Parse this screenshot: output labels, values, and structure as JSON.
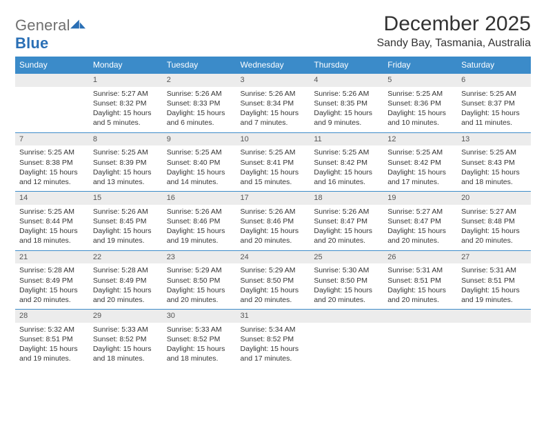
{
  "logo": {
    "word1": "General",
    "word2": "Blue"
  },
  "title": "December 2025",
  "location": "Sandy Bay, Tasmania, Australia",
  "colors": {
    "header_bg": "#3b8bc9",
    "header_text": "#ffffff",
    "daynum_bg": "#ececec",
    "row_border": "#3b8bc9",
    "text": "#333333",
    "logo_blue": "#2a6fb5",
    "logo_gray": "#6f6f6f"
  },
  "fonts": {
    "title_size": 30,
    "location_size": 16,
    "header_size": 12,
    "cell_size": 10.5
  },
  "weekdays": [
    "Sunday",
    "Monday",
    "Tuesday",
    "Wednesday",
    "Thursday",
    "Friday",
    "Saturday"
  ],
  "weeks": [
    [
      {
        "num": "",
        "sunrise": "",
        "sunset": "",
        "daylight": ""
      },
      {
        "num": "1",
        "sunrise": "Sunrise: 5:27 AM",
        "sunset": "Sunset: 8:32 PM",
        "daylight": "Daylight: 15 hours and 5 minutes."
      },
      {
        "num": "2",
        "sunrise": "Sunrise: 5:26 AM",
        "sunset": "Sunset: 8:33 PM",
        "daylight": "Daylight: 15 hours and 6 minutes."
      },
      {
        "num": "3",
        "sunrise": "Sunrise: 5:26 AM",
        "sunset": "Sunset: 8:34 PM",
        "daylight": "Daylight: 15 hours and 7 minutes."
      },
      {
        "num": "4",
        "sunrise": "Sunrise: 5:26 AM",
        "sunset": "Sunset: 8:35 PM",
        "daylight": "Daylight: 15 hours and 9 minutes."
      },
      {
        "num": "5",
        "sunrise": "Sunrise: 5:25 AM",
        "sunset": "Sunset: 8:36 PM",
        "daylight": "Daylight: 15 hours and 10 minutes."
      },
      {
        "num": "6",
        "sunrise": "Sunrise: 5:25 AM",
        "sunset": "Sunset: 8:37 PM",
        "daylight": "Daylight: 15 hours and 11 minutes."
      }
    ],
    [
      {
        "num": "7",
        "sunrise": "Sunrise: 5:25 AM",
        "sunset": "Sunset: 8:38 PM",
        "daylight": "Daylight: 15 hours and 12 minutes."
      },
      {
        "num": "8",
        "sunrise": "Sunrise: 5:25 AM",
        "sunset": "Sunset: 8:39 PM",
        "daylight": "Daylight: 15 hours and 13 minutes."
      },
      {
        "num": "9",
        "sunrise": "Sunrise: 5:25 AM",
        "sunset": "Sunset: 8:40 PM",
        "daylight": "Daylight: 15 hours and 14 minutes."
      },
      {
        "num": "10",
        "sunrise": "Sunrise: 5:25 AM",
        "sunset": "Sunset: 8:41 PM",
        "daylight": "Daylight: 15 hours and 15 minutes."
      },
      {
        "num": "11",
        "sunrise": "Sunrise: 5:25 AM",
        "sunset": "Sunset: 8:42 PM",
        "daylight": "Daylight: 15 hours and 16 minutes."
      },
      {
        "num": "12",
        "sunrise": "Sunrise: 5:25 AM",
        "sunset": "Sunset: 8:42 PM",
        "daylight": "Daylight: 15 hours and 17 minutes."
      },
      {
        "num": "13",
        "sunrise": "Sunrise: 5:25 AM",
        "sunset": "Sunset: 8:43 PM",
        "daylight": "Daylight: 15 hours and 18 minutes."
      }
    ],
    [
      {
        "num": "14",
        "sunrise": "Sunrise: 5:25 AM",
        "sunset": "Sunset: 8:44 PM",
        "daylight": "Daylight: 15 hours and 18 minutes."
      },
      {
        "num": "15",
        "sunrise": "Sunrise: 5:26 AM",
        "sunset": "Sunset: 8:45 PM",
        "daylight": "Daylight: 15 hours and 19 minutes."
      },
      {
        "num": "16",
        "sunrise": "Sunrise: 5:26 AM",
        "sunset": "Sunset: 8:46 PM",
        "daylight": "Daylight: 15 hours and 19 minutes."
      },
      {
        "num": "17",
        "sunrise": "Sunrise: 5:26 AM",
        "sunset": "Sunset: 8:46 PM",
        "daylight": "Daylight: 15 hours and 20 minutes."
      },
      {
        "num": "18",
        "sunrise": "Sunrise: 5:26 AM",
        "sunset": "Sunset: 8:47 PM",
        "daylight": "Daylight: 15 hours and 20 minutes."
      },
      {
        "num": "19",
        "sunrise": "Sunrise: 5:27 AM",
        "sunset": "Sunset: 8:47 PM",
        "daylight": "Daylight: 15 hours and 20 minutes."
      },
      {
        "num": "20",
        "sunrise": "Sunrise: 5:27 AM",
        "sunset": "Sunset: 8:48 PM",
        "daylight": "Daylight: 15 hours and 20 minutes."
      }
    ],
    [
      {
        "num": "21",
        "sunrise": "Sunrise: 5:28 AM",
        "sunset": "Sunset: 8:49 PM",
        "daylight": "Daylight: 15 hours and 20 minutes."
      },
      {
        "num": "22",
        "sunrise": "Sunrise: 5:28 AM",
        "sunset": "Sunset: 8:49 PM",
        "daylight": "Daylight: 15 hours and 20 minutes."
      },
      {
        "num": "23",
        "sunrise": "Sunrise: 5:29 AM",
        "sunset": "Sunset: 8:50 PM",
        "daylight": "Daylight: 15 hours and 20 minutes."
      },
      {
        "num": "24",
        "sunrise": "Sunrise: 5:29 AM",
        "sunset": "Sunset: 8:50 PM",
        "daylight": "Daylight: 15 hours and 20 minutes."
      },
      {
        "num": "25",
        "sunrise": "Sunrise: 5:30 AM",
        "sunset": "Sunset: 8:50 PM",
        "daylight": "Daylight: 15 hours and 20 minutes."
      },
      {
        "num": "26",
        "sunrise": "Sunrise: 5:31 AM",
        "sunset": "Sunset: 8:51 PM",
        "daylight": "Daylight: 15 hours and 20 minutes."
      },
      {
        "num": "27",
        "sunrise": "Sunrise: 5:31 AM",
        "sunset": "Sunset: 8:51 PM",
        "daylight": "Daylight: 15 hours and 19 minutes."
      }
    ],
    [
      {
        "num": "28",
        "sunrise": "Sunrise: 5:32 AM",
        "sunset": "Sunset: 8:51 PM",
        "daylight": "Daylight: 15 hours and 19 minutes."
      },
      {
        "num": "29",
        "sunrise": "Sunrise: 5:33 AM",
        "sunset": "Sunset: 8:52 PM",
        "daylight": "Daylight: 15 hours and 18 minutes."
      },
      {
        "num": "30",
        "sunrise": "Sunrise: 5:33 AM",
        "sunset": "Sunset: 8:52 PM",
        "daylight": "Daylight: 15 hours and 18 minutes."
      },
      {
        "num": "31",
        "sunrise": "Sunrise: 5:34 AM",
        "sunset": "Sunset: 8:52 PM",
        "daylight": "Daylight: 15 hours and 17 minutes."
      },
      {
        "num": "",
        "sunrise": "",
        "sunset": "",
        "daylight": ""
      },
      {
        "num": "",
        "sunrise": "",
        "sunset": "",
        "daylight": ""
      },
      {
        "num": "",
        "sunrise": "",
        "sunset": "",
        "daylight": ""
      }
    ]
  ]
}
